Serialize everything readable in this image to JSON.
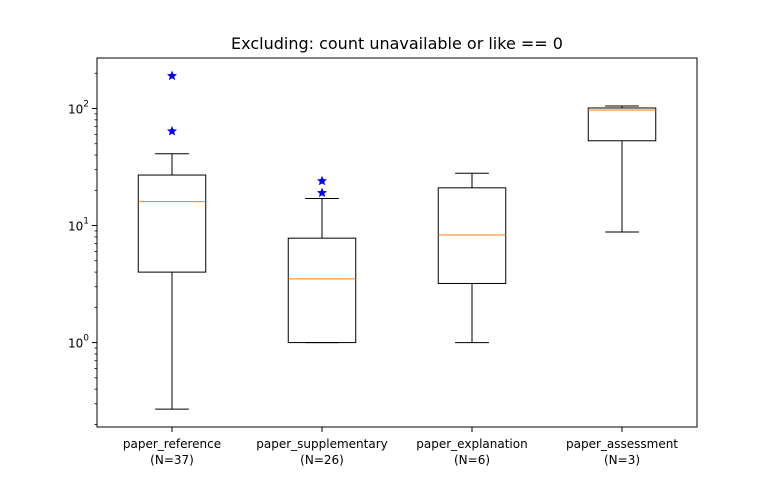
{
  "chart_data": {
    "type": "boxplot",
    "title": "Excluding: count unavailable or like == 0",
    "xlabel": "",
    "ylabel": "",
    "yscale": "log",
    "ylim": [
      0.19,
      270
    ],
    "y_ticks": [
      {
        "value": 1,
        "label": "10",
        "exp": "0"
      },
      {
        "value": 10,
        "label": "10",
        "exp": "1"
      },
      {
        "value": 100,
        "label": "10",
        "exp": "2"
      }
    ],
    "grid": false,
    "box_color": "#000000",
    "median_color": "#ff7f0e",
    "flier_color": "#0000ff",
    "flier_marker": "star",
    "categories": [
      {
        "name": "paper_reference",
        "n_label": "(N=37)",
        "whisker_low": 0.27,
        "q1": 4.0,
        "median": 16.0,
        "q3": 27.0,
        "whisker_high": 41.0,
        "outliers": [
          64,
          190
        ]
      },
      {
        "name": "paper_supplementary",
        "n_label": "(N=26)",
        "whisker_low": 1.0,
        "q1": 1.0,
        "median": 3.5,
        "q3": 7.8,
        "whisker_high": 17.0,
        "outliers": [
          19,
          24
        ]
      },
      {
        "name": "paper_explanation",
        "n_label": "(N=6)",
        "whisker_low": 1.0,
        "q1": 3.2,
        "median": 8.3,
        "q3": 21.0,
        "whisker_high": 28.0,
        "outliers": []
      },
      {
        "name": "paper_assessment",
        "n_label": "(N=3)",
        "whisker_low": 8.8,
        "q1": 53.0,
        "median": 97.0,
        "q3": 101.0,
        "whisker_high": 105.0,
        "outliers": []
      }
    ]
  }
}
